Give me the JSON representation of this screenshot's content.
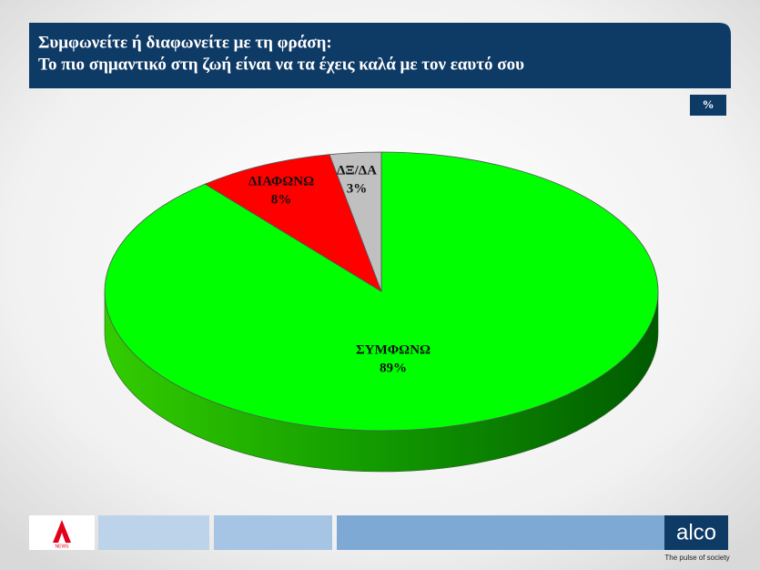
{
  "chart_data": {
    "type": "pie",
    "title": "Συμφωνείτε ή διαφωνείτε με τη φράση:",
    "subtitle": "Το πιο σημαντικό στη ζωή είναι να τα έχεις καλά με τον εαυτό σου",
    "categories": [
      "ΣΥΜΦΩΝΩ",
      "ΔΙΑΦΩΝΩ",
      "ΔΞ/ΔΑ"
    ],
    "values": [
      89,
      8,
      3
    ],
    "value_labels": [
      "89%",
      "8%",
      "3%"
    ],
    "colors": [
      "#00ff00",
      "#ff0000",
      "#c0c0c0"
    ]
  },
  "badge": "%",
  "footer": {
    "news_logo": "NEWS",
    "brand": "alco",
    "tagline": "The pulse of society"
  }
}
